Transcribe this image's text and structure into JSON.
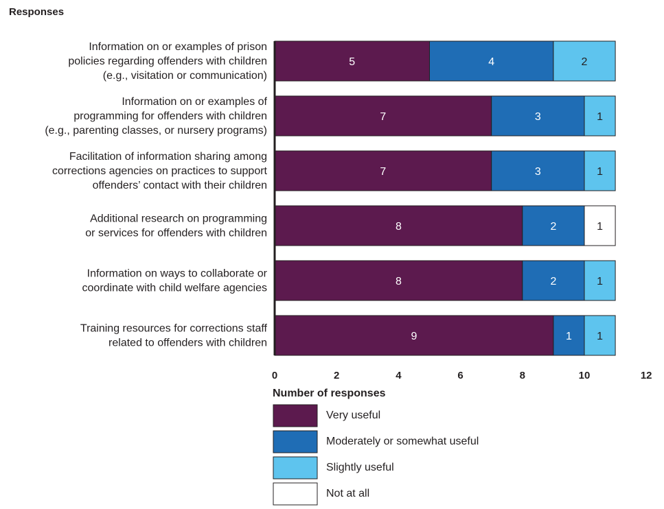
{
  "chart_data": {
    "type": "bar",
    "orientation": "horizontal",
    "stacked": true,
    "title": "Responses",
    "xlabel": "Number of responses",
    "xlim": [
      0,
      12
    ],
    "xticks": [
      "0",
      "2",
      "4",
      "6",
      "8",
      "10",
      "12"
    ],
    "grid": false,
    "legend_position": "bottom",
    "categories": [
      [
        "Information on or examples of prison",
        "policies regarding offenders with children",
        "(e.g., visitation or communication)"
      ],
      [
        "Information on or examples of",
        "programming for offenders with children",
        "(e.g., parenting classes, or nursery programs)"
      ],
      [
        "Facilitation of information sharing among",
        "corrections agencies on practices to support",
        "offenders’ contact with their children"
      ],
      [
        "Additional research on programming",
        "or services for offenders with children"
      ],
      [
        "Information on ways to collaborate or",
        "coordinate with child welfare agencies"
      ],
      [
        "Training resources for corrections staff",
        "related to offenders with children"
      ]
    ],
    "series": [
      {
        "name": "Very useful",
        "color": "#5c1a4e",
        "label_color": "#ffffff",
        "values": [
          5,
          7,
          7,
          8,
          8,
          9
        ]
      },
      {
        "name": "Moderately or somewhat useful",
        "color": "#1f6db5",
        "label_color": "#ffffff",
        "values": [
          4,
          3,
          3,
          2,
          2,
          1
        ]
      },
      {
        "name": "Slightly useful",
        "color": "#5ec4ee",
        "label_color": "#231f20",
        "values": [
          2,
          1,
          1,
          0,
          1,
          1
        ]
      },
      {
        "name": "Not at all",
        "color": "#ffffff",
        "label_color": "#231f20",
        "values": [
          0,
          0,
          0,
          1,
          0,
          0
        ]
      }
    ]
  }
}
